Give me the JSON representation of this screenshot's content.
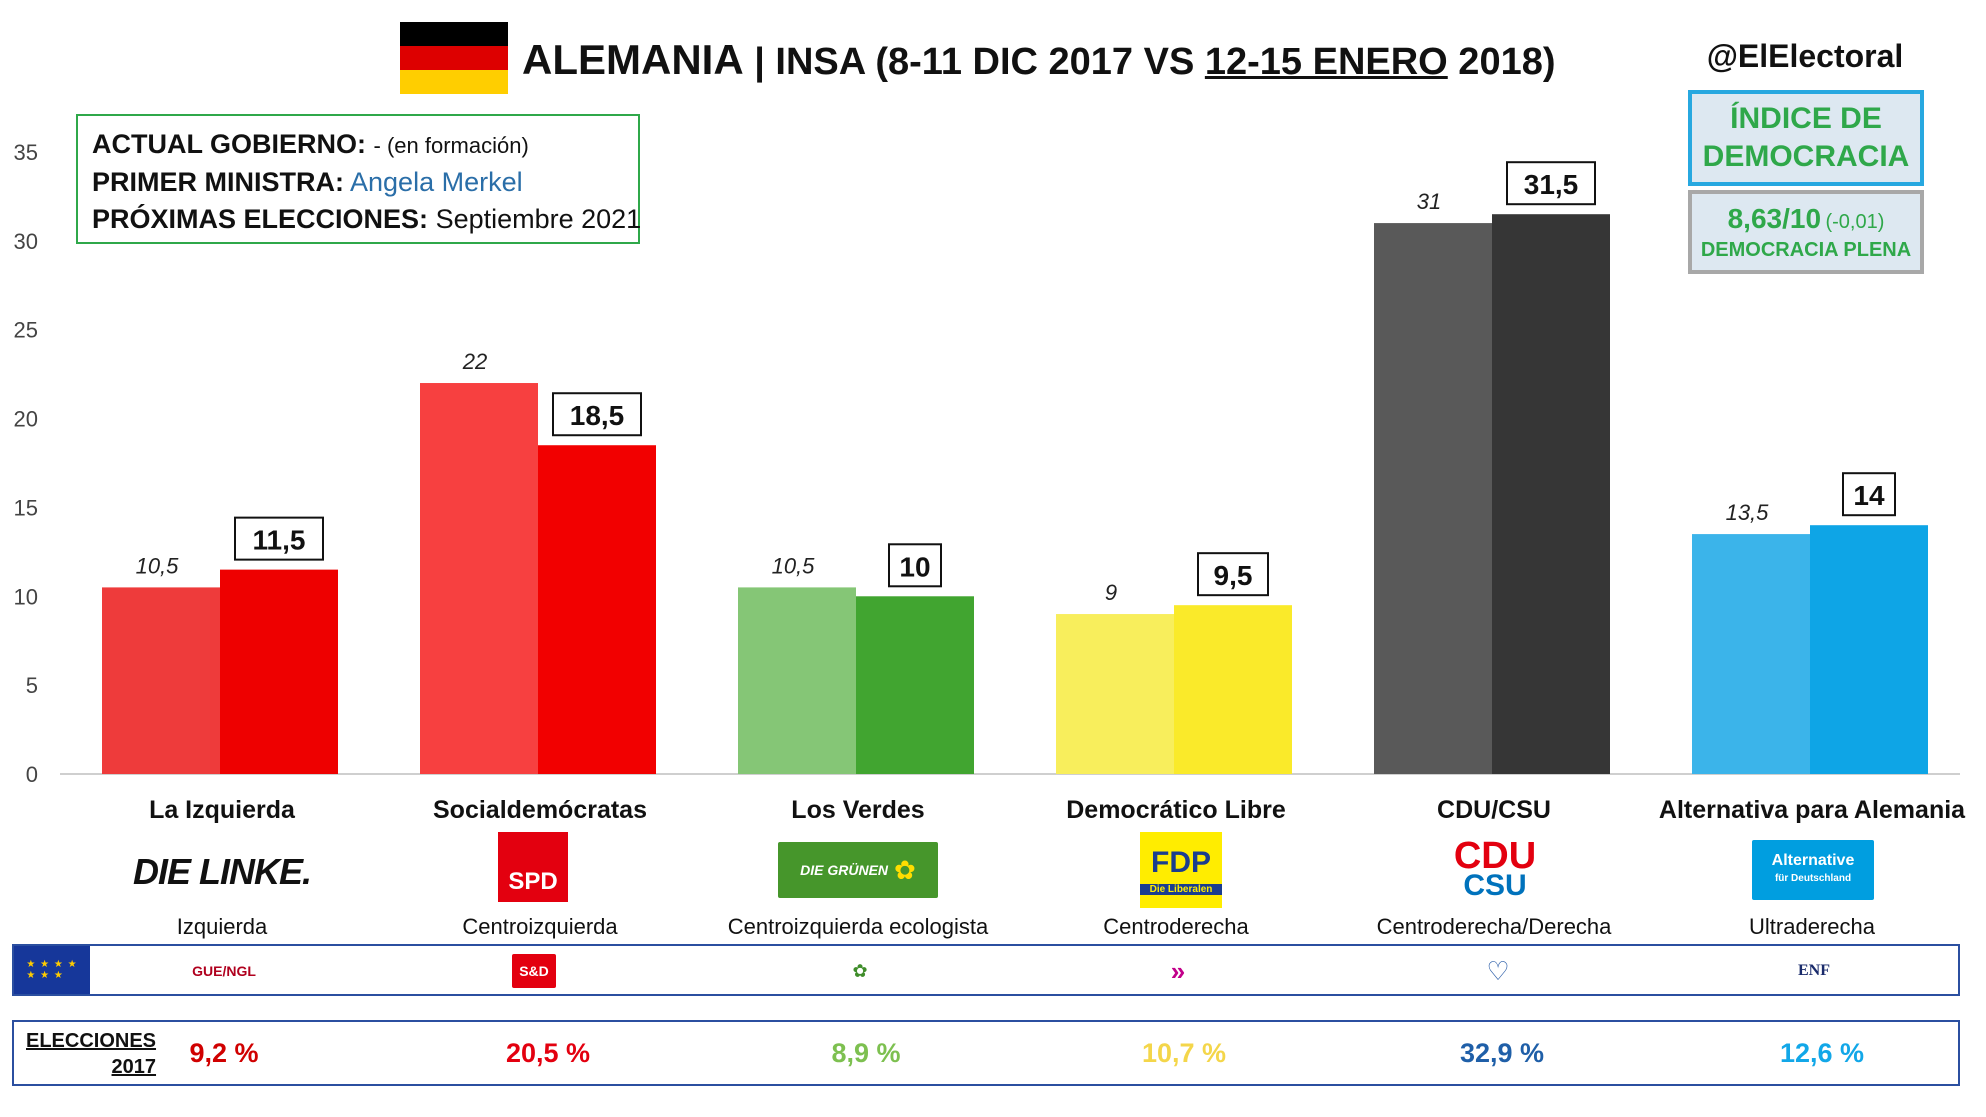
{
  "header": {
    "title_country": "ALEMANIA",
    "title_middle": " | INSA (8-11 DIC 2017 VS ",
    "title_underlined": "12-15 ENERO",
    "title_end": " 2018)",
    "handle": "@ElElectoral",
    "flag_colors": [
      "#000000",
      "#dd0000",
      "#ffce00"
    ]
  },
  "info": {
    "gov_label": "ACTUAL GOBIERNO:",
    "gov_value": "- (en formación)",
    "pm_label": "PRIMER MINISTRA:",
    "pm_value": "Angela Merkel",
    "elec_label": "PRÓXIMAS ELECCIONES:",
    "elec_value": "Septiembre 2021"
  },
  "democracy": {
    "title_line1": "ÍNDICE DE",
    "title_line2": "DEMOCRACIA",
    "score": "8,63/10",
    "change": "(-0,01)",
    "level": "DEMOCRACIA PLENA"
  },
  "chart_data": {
    "type": "bar",
    "categories": [
      "La Izquierda",
      "Socialdemócratas",
      "Los Verdes",
      "Democrático Libre",
      "CDU/CSU",
      "Alternativa para Alemania"
    ],
    "series": [
      {
        "values": [
          10.5,
          22,
          10.5,
          9,
          31,
          13.5
        ],
        "labels": [
          "10,5",
          "22",
          "10,5",
          "9",
          "31",
          "13,5"
        ]
      },
      {
        "values": [
          11.5,
          18.5,
          10,
          9.5,
          31.5,
          14
        ],
        "labels": [
          "11,5",
          "18,5",
          "10",
          "9,5",
          "31,5",
          "14"
        ]
      }
    ],
    "colors_old": [
      "#ee3b3b",
      "#f74040",
      "#85c676",
      "#f8ee5c",
      "#595959",
      "#3bb4ea"
    ],
    "colors_new": [
      "#ee0000",
      "#f20000",
      "#41a530",
      "#faea2a",
      "#363636",
      "#0ea5e6"
    ],
    "ylim": [
      0,
      35
    ],
    "yticks": [
      0,
      5,
      10,
      15,
      20,
      25,
      30,
      35
    ],
    "grid": false
  },
  "parties": [
    {
      "name": "La Izquierda",
      "ideology": "Izquierda",
      "logo": "DIE LINKE.",
      "eu_logo": "GUE/NGL",
      "eu_icon": "gue-ngl-logo",
      "result_2017": "9,2 %",
      "result_color": "#d00000"
    },
    {
      "name": "Socialdemócratas",
      "ideology": "Centroizquierda",
      "logo": "SPD",
      "eu_logo": "S&D",
      "eu_icon": "s-and-d-logo",
      "result_2017": "20,5 %",
      "result_color": "#e3000f"
    },
    {
      "name": "Los Verdes",
      "ideology": "Centroizquierda ecologista",
      "logo": "DIE GRÜNEN",
      "eu_logo": "✿",
      "eu_icon": "greens-efa-logo",
      "result_2017": "8,9 %",
      "result_color": "#7dc050"
    },
    {
      "name": "Democrático Libre",
      "ideology": "Centroderecha",
      "logo": "FDP",
      "logo_sub": "Die Liberalen",
      "eu_logo": "»",
      "eu_icon": "alde-logo",
      "result_2017": "10,7 %",
      "result_color": "#f4d64a"
    },
    {
      "name": "CDU/CSU",
      "ideology": "Centroderecha/Derecha",
      "logo": "CDU",
      "logo_sub": "CSU",
      "eu_logo": "♡",
      "eu_icon": "epp-logo",
      "result_2017": "32,9 %",
      "result_color": "#1f5fa8"
    },
    {
      "name": "Alternativa para Alemania",
      "ideology": "Ultraderecha",
      "logo": "Alternative",
      "logo_sub": "für Deutschland",
      "eu_logo": "ENF",
      "eu_icon": "enf-logo",
      "result_2017": "12,6 %",
      "result_color": "#12a7e8"
    }
  ],
  "elections": {
    "label_line1": "ELECCIONES",
    "label_line2": "2017"
  },
  "eu_flag_icon": "eu-flag-icon"
}
